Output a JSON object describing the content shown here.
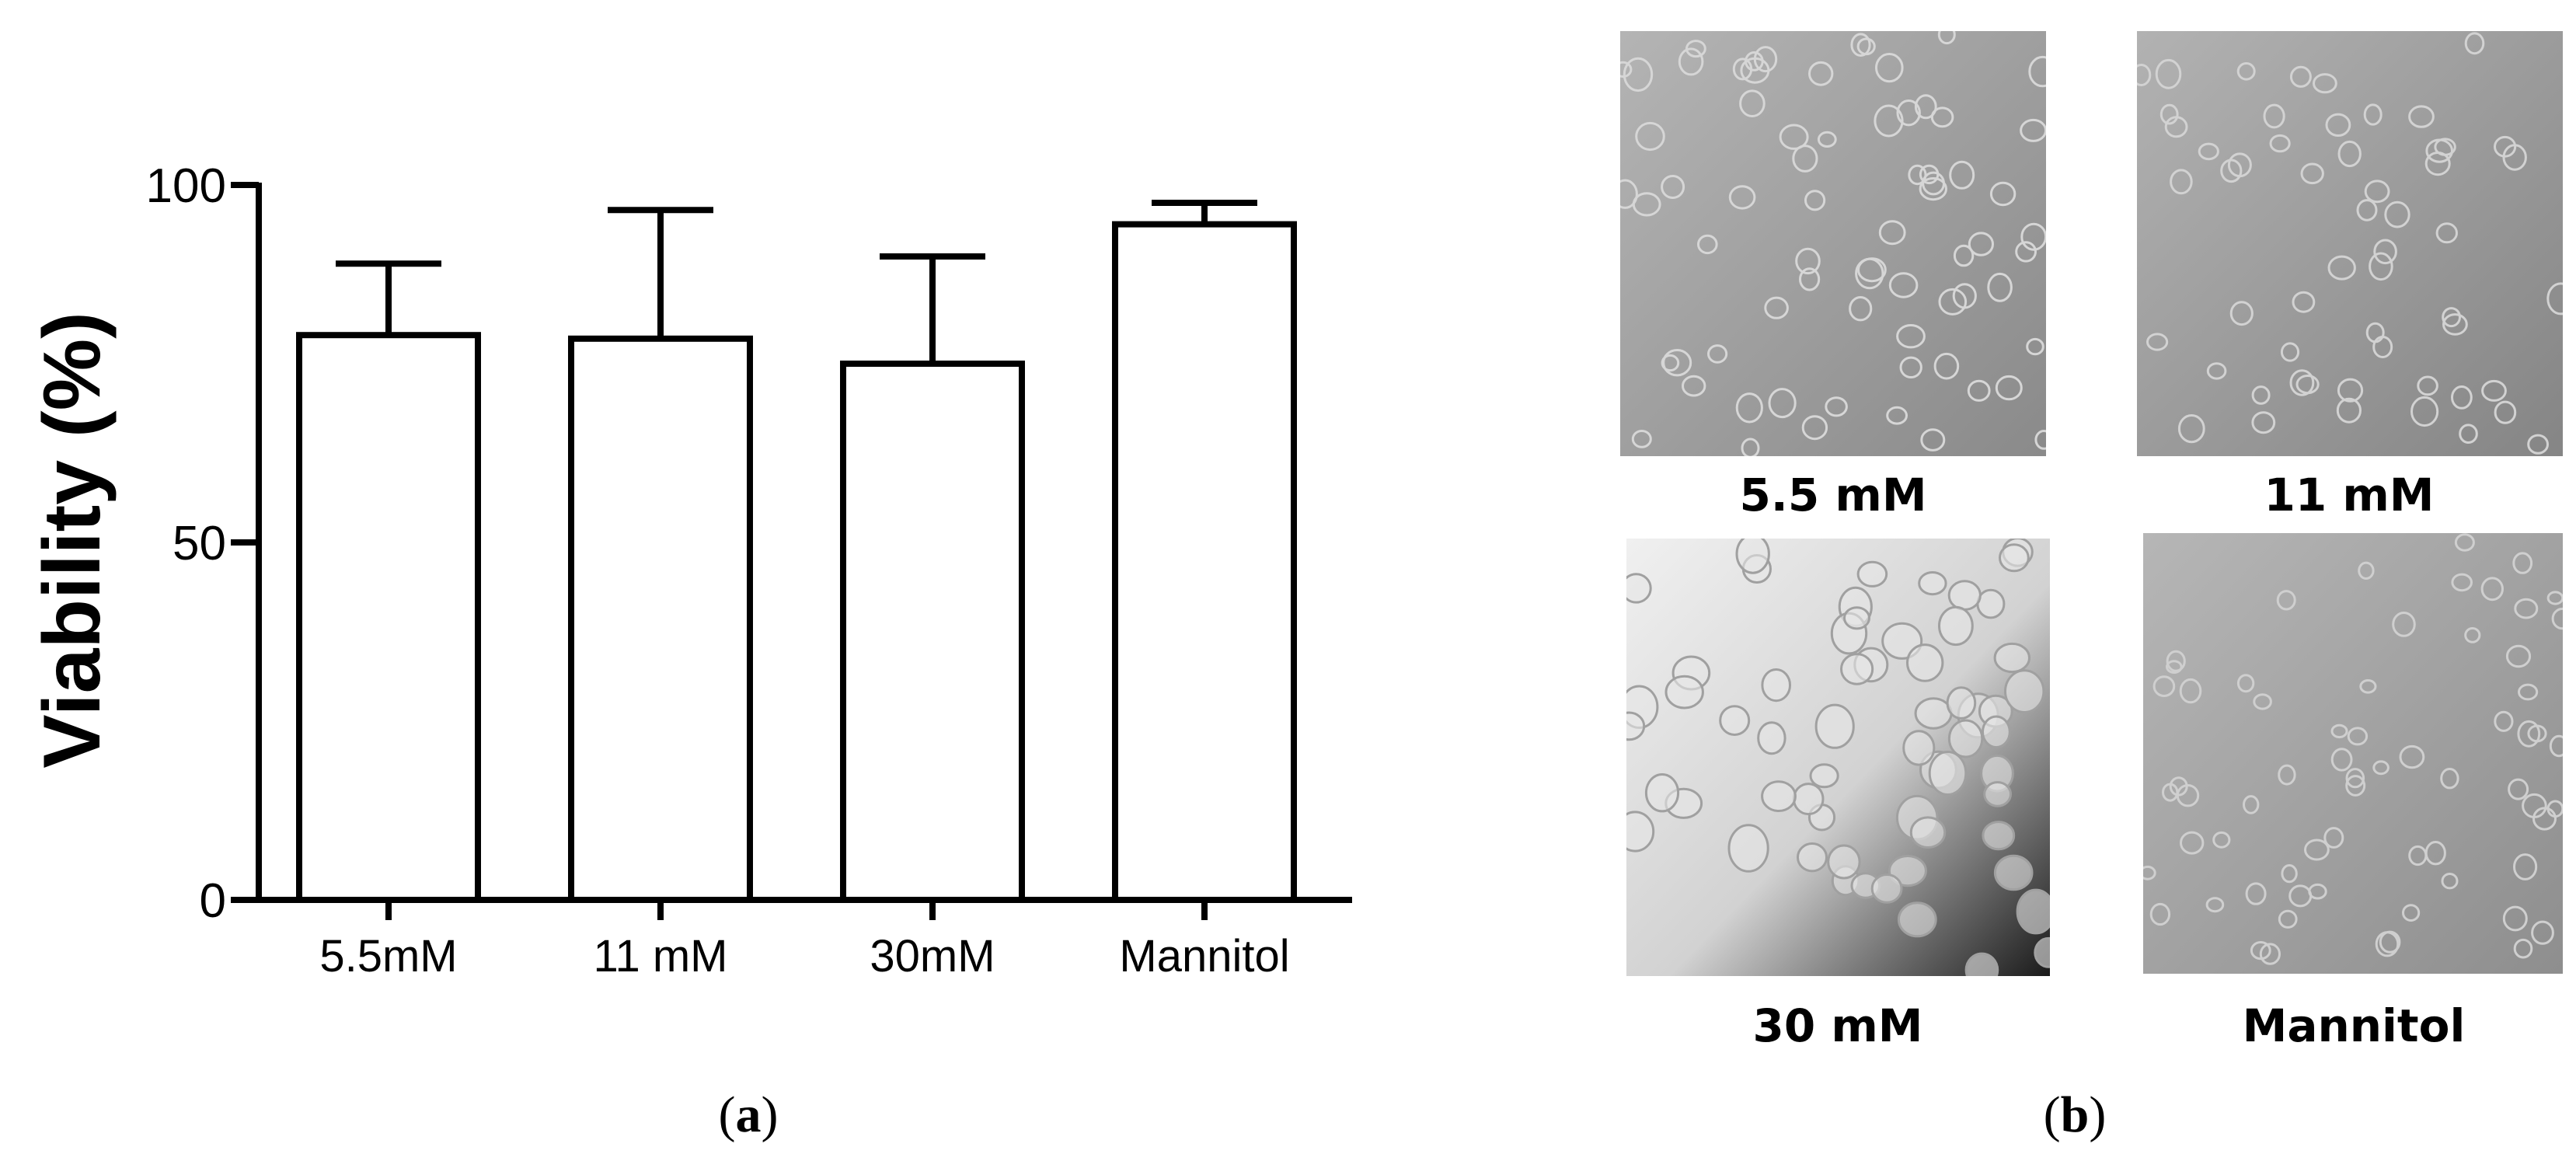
{
  "chart_data": {
    "type": "bar",
    "categories": [
      "5.5mM",
      "11 mM",
      "30mM",
      "Mannitol"
    ],
    "values": [
      79,
      78.5,
      75,
      94.5
    ],
    "errors": [
      10,
      18,
      15,
      3
    ],
    "ylabel": "Viability (%)",
    "xlabel": "",
    "ylim": [
      0,
      100
    ],
    "yticks": [
      0,
      50,
      100
    ],
    "grid": false,
    "bar_fill": "#ffffff",
    "bar_stroke": "#000000"
  },
  "panels": {
    "a_letter": "a",
    "b_letter": "b",
    "b_open": "(",
    "b_close": ")",
    "micrographs": [
      {
        "label": "5.5 mM"
      },
      {
        "label": "11 mM"
      },
      {
        "label": "30 mM"
      },
      {
        "label": "Mannitol"
      }
    ]
  }
}
